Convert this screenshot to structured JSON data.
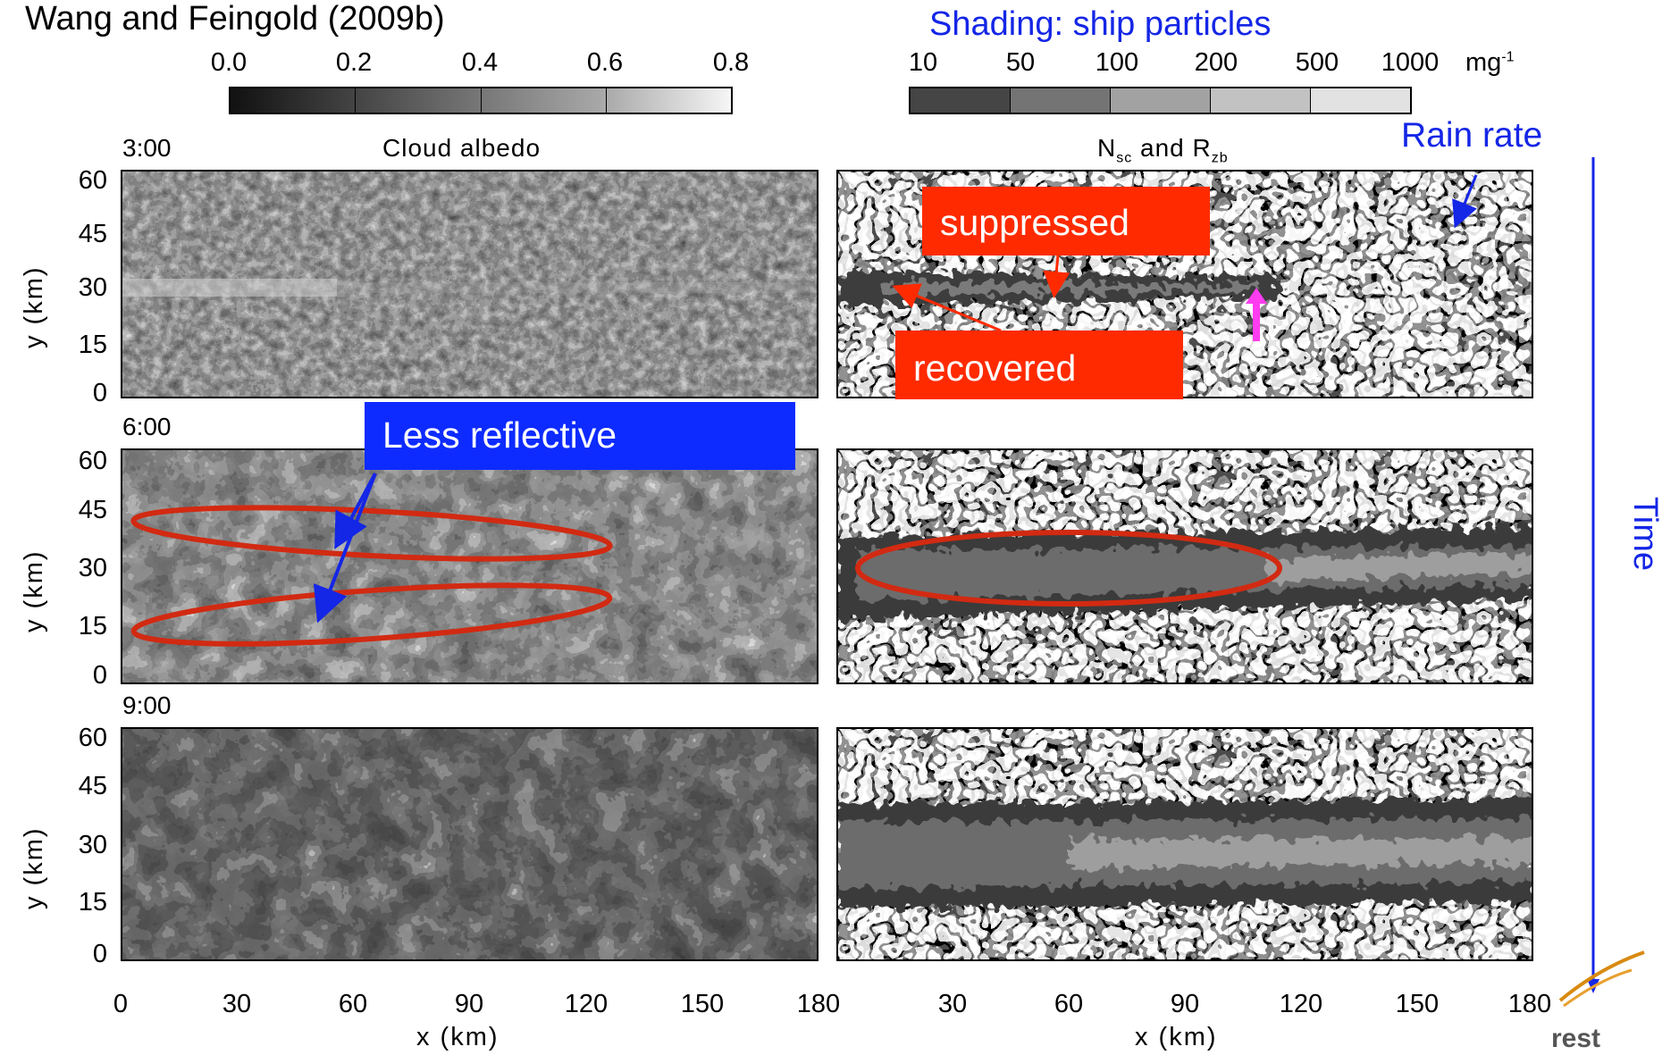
{
  "header": {
    "reference": "Wang and Feingold (2009b)",
    "shading_title": "Shading: ship particles"
  },
  "colorbar_albedo": {
    "ticks": [
      "0.0",
      "0.2",
      "0.4",
      "0.6",
      "0.8"
    ],
    "colors": [
      "#232323",
      "#5a5a5a",
      "#8a8a8a",
      "#b8b8b8",
      "#e8e8e8"
    ]
  },
  "colorbar_particles": {
    "ticks": [
      "10",
      "50",
      "100",
      "200",
      "500",
      "1000"
    ],
    "unit": "mg",
    "unit_exp": "-1",
    "colors": [
      "#454545",
      "#747474",
      "#a2a2a2",
      "#c2c2c2",
      "#e2e2e2"
    ]
  },
  "panels": {
    "left_title": "Cloud albedo",
    "right_title_main": "N",
    "right_title_sub1": "sc",
    "right_title_mid": " and R",
    "right_title_sub2": "zb",
    "time_labels": [
      "3:00",
      "6:00",
      "9:00"
    ],
    "y_ticks": [
      "60",
      "45",
      "30",
      "15",
      "0"
    ],
    "y_label": "y (km)",
    "x_ticks_left": [
      "0",
      "30",
      "60",
      "90",
      "120",
      "150",
      "180"
    ],
    "x_ticks_right": [
      "30",
      "60",
      "90",
      "120",
      "150",
      "180"
    ],
    "x_label": "x (km)"
  },
  "annotations": {
    "suppressed": "suppressed",
    "recovered": "recovered",
    "less_reflective": "Less reflective",
    "rain_rate": "Rain rate",
    "time": "Time",
    "footer_partial": "rest"
  },
  "colors": {
    "annotation_blue": "#1426e6",
    "annotation_red": "#ff2a00",
    "ellipse_red": "#d22a12",
    "pink_arrow": "#ff3cf0"
  }
}
